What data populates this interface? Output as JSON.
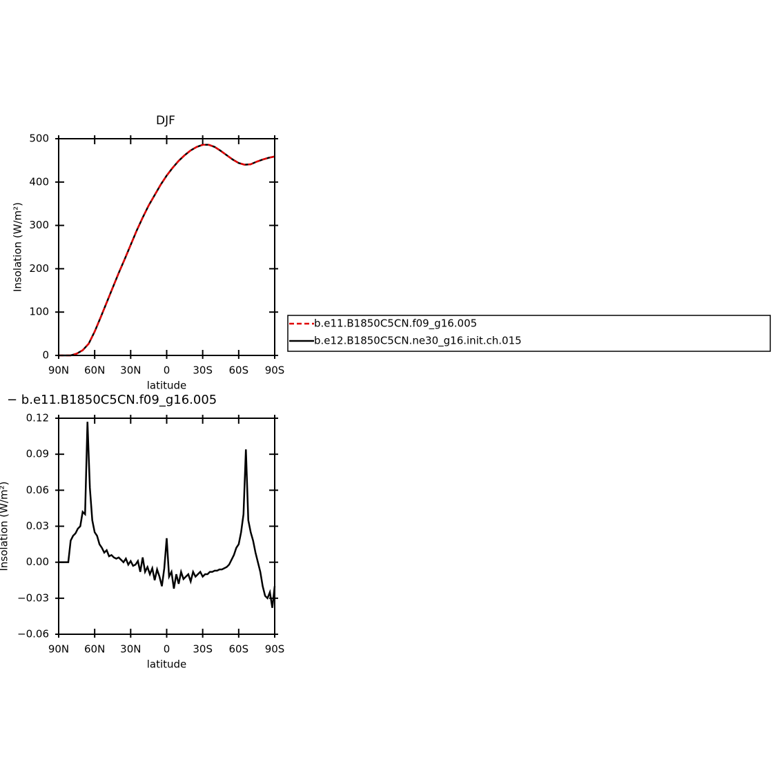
{
  "chart_data": [
    {
      "type": "line",
      "title": "DJF",
      "xlabel": "latitude",
      "ylabel": "Insolation (W/m²)",
      "x": [
        90,
        85,
        80,
        75,
        70,
        65,
        60,
        55,
        50,
        45,
        40,
        35,
        30,
        25,
        20,
        15,
        10,
        5,
        0,
        -5,
        -10,
        -15,
        -20,
        -25,
        -30,
        -35,
        -40,
        -45,
        -50,
        -55,
        -60,
        -65,
        -70,
        -75,
        -80,
        -85,
        -90
      ],
      "series": [
        {
          "name": "b.e11.B1850C5CN.f09_g16.005",
          "color": "#e00000",
          "line_style": "dashed",
          "values": [
            0,
            0,
            0,
            4,
            12,
            27,
            55,
            88,
            122,
            156,
            190,
            222,
            255,
            288,
            318,
            346,
            370,
            394,
            415,
            433,
            449,
            462,
            473,
            481,
            486,
            486,
            481,
            472,
            462,
            452,
            444,
            440,
            441,
            447,
            452,
            456,
            459
          ]
        },
        {
          "name": "b.e12.B1850C5CN.ne30_g16.init.ch.015",
          "color": "#000000",
          "line_style": "solid",
          "values": [
            0,
            0,
            0,
            4,
            12,
            27,
            55,
            88,
            122,
            156,
            190,
            222,
            255,
            288,
            318,
            346,
            370,
            394,
            415,
            433,
            449,
            462,
            473,
            481,
            486,
            486,
            481,
            472,
            462,
            452,
            444,
            440,
            441,
            447,
            452,
            456,
            459
          ]
        }
      ],
      "xlim": [
        90,
        -90
      ],
      "xticks": [
        {
          "value": 90,
          "label": "90N"
        },
        {
          "value": 60,
          "label": "60N"
        },
        {
          "value": 30,
          "label": "30N"
        },
        0,
        {
          "value": -30,
          "label": "30S"
        },
        {
          "value": -60,
          "label": "60S"
        },
        {
          "value": -90,
          "label": "90S"
        }
      ],
      "ylim": [
        0,
        500
      ],
      "yticks": [
        0,
        100,
        200,
        300,
        400,
        500
      ]
    },
    {
      "type": "line",
      "title": "− b.e11.B1850C5CN.f09_g16.005",
      "xlabel": "latitude",
      "ylabel": "Insolation (W/m²)",
      "x": [
        90,
        88,
        86,
        84,
        82,
        80,
        78,
        76,
        74,
        72,
        70,
        68,
        66,
        64,
        62,
        60,
        58,
        56,
        54,
        52,
        50,
        48,
        46,
        44,
        42,
        40,
        38,
        36,
        34,
        32,
        30,
        28,
        26,
        24,
        22,
        20,
        18,
        16,
        14,
        12,
        10,
        8,
        6,
        4,
        2,
        0,
        -2,
        -4,
        -6,
        -8,
        -10,
        -12,
        -14,
        -16,
        -18,
        -20,
        -22,
        -24,
        -26,
        -28,
        -30,
        -32,
        -34,
        -36,
        -38,
        -40,
        -42,
        -44,
        -46,
        -48,
        -50,
        -52,
        -54,
        -56,
        -58,
        -60,
        -62,
        -64,
        -66,
        -68,
        -70,
        -72,
        -74,
        -76,
        -78,
        -80,
        -82,
        -84,
        -86,
        -88,
        -90
      ],
      "values": [
        0,
        0,
        0,
        0,
        0,
        0.018,
        0.022,
        0.024,
        0.028,
        0.03,
        0.042,
        0.04,
        0.117,
        0.062,
        0.035,
        0.025,
        0.022,
        0.015,
        0.012,
        0.008,
        0.01,
        0.005,
        0.006,
        0.004,
        0.003,
        0.004,
        0.002,
        0.0,
        0.003,
        -0.002,
        0.001,
        -0.003,
        -0.002,
        0.001,
        -0.008,
        0.004,
        -0.008,
        -0.004,
        -0.01,
        -0.005,
        -0.015,
        -0.006,
        -0.012,
        -0.02,
        -0.005,
        0.02,
        -0.012,
        -0.008,
        -0.022,
        -0.01,
        -0.018,
        -0.008,
        -0.014,
        -0.012,
        -0.01,
        -0.016,
        -0.008,
        -0.012,
        -0.01,
        -0.008,
        -0.012,
        -0.01,
        -0.01,
        -0.008,
        -0.008,
        -0.007,
        -0.007,
        -0.006,
        -0.006,
        -0.005,
        -0.004,
        -0.002,
        0.002,
        0.006,
        0.012,
        0.015,
        0.025,
        0.04,
        0.094,
        0.035,
        0.025,
        0.018,
        0.008,
        0.0,
        -0.008,
        -0.02,
        -0.028,
        -0.03,
        -0.025,
        -0.038,
        -0.02
      ],
      "color": "#000000",
      "xlim": [
        90,
        -90
      ],
      "xticks": [
        {
          "value": 90,
          "label": "90N"
        },
        {
          "value": 60,
          "label": "60N"
        },
        {
          "value": 30,
          "label": "30N"
        },
        0,
        {
          "value": -30,
          "label": "30S"
        },
        {
          "value": -60,
          "label": "60S"
        },
        {
          "value": -90,
          "label": "90S"
        }
      ],
      "ylim": [
        -0.06,
        0.12
      ],
      "yticks": [
        {
          "value": -0.06,
          "label": "−0.06"
        },
        {
          "value": -0.03,
          "label": "−0.03"
        },
        {
          "value": 0,
          "label": "0.00"
        },
        0.03,
        0.06,
        0.09,
        0.12
      ]
    }
  ]
}
